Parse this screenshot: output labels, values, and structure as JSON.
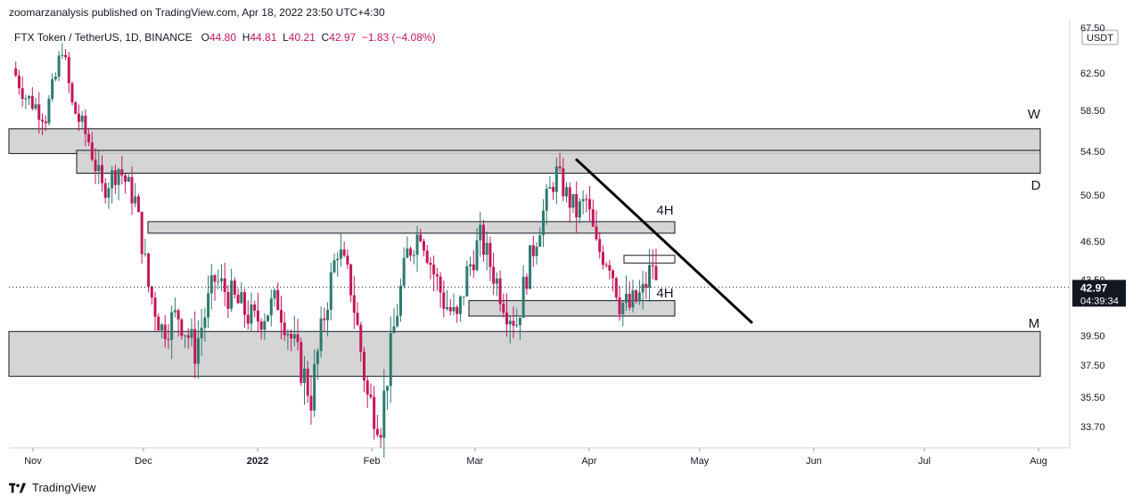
{
  "header": {
    "attribution": "zoomarzanalysis published on TradingView.com, Apr 18, 2022 23:50 UTC+4:30"
  },
  "legend": {
    "symbol": "FTX Token / TetherUS, 1D, BINANCE",
    "open_label": "O",
    "open": "44.80",
    "high_label": "H",
    "high": "44.81",
    "low_label": "L",
    "low": "40.21",
    "close_label": "C",
    "close": "42.97",
    "change": "−1.83 (−4.08%)"
  },
  "footer": {
    "brand": "TradingView"
  },
  "chart_data": {
    "type": "candlestick",
    "currency_badge": "USDT",
    "last_price": "42.97",
    "countdown": "04:39:34",
    "y_ticks": [
      "67.50",
      "62.50",
      "58.50",
      "54.50",
      "50.50",
      "46.50",
      "43.50",
      "39.50",
      "37.50",
      "35.50",
      "33.70"
    ],
    "y_range": [
      32.5,
      67.5
    ],
    "x_ticks": [
      "Nov",
      "Dec",
      "2022",
      "Feb",
      "Mar",
      "Apr",
      "May",
      "Jun",
      "Jul",
      "Aug"
    ],
    "zones": [
      {
        "low": 54.3,
        "high": 56.7,
        "label": "W"
      },
      {
        "low": 52.5,
        "high": 54.6,
        "label": "D"
      },
      {
        "low": 47.2,
        "high": 48.2,
        "label": "4H"
      },
      {
        "low": 44.8,
        "high": 45.4,
        "label": ""
      },
      {
        "low": 40.9,
        "high": 42.0,
        "label": "4H"
      },
      {
        "low": 36.8,
        "high": 39.8,
        "label": "M"
      }
    ],
    "trendline": {
      "start": {
        "date": "2022-03-25",
        "price": 53.8
      },
      "end": {
        "date": "2022-05-15",
        "price": 40.4
      }
    },
    "colors": {
      "up": "#2d7a6e",
      "down": "#c2185b",
      "zone_fill": "#d0d0d0"
    }
  }
}
